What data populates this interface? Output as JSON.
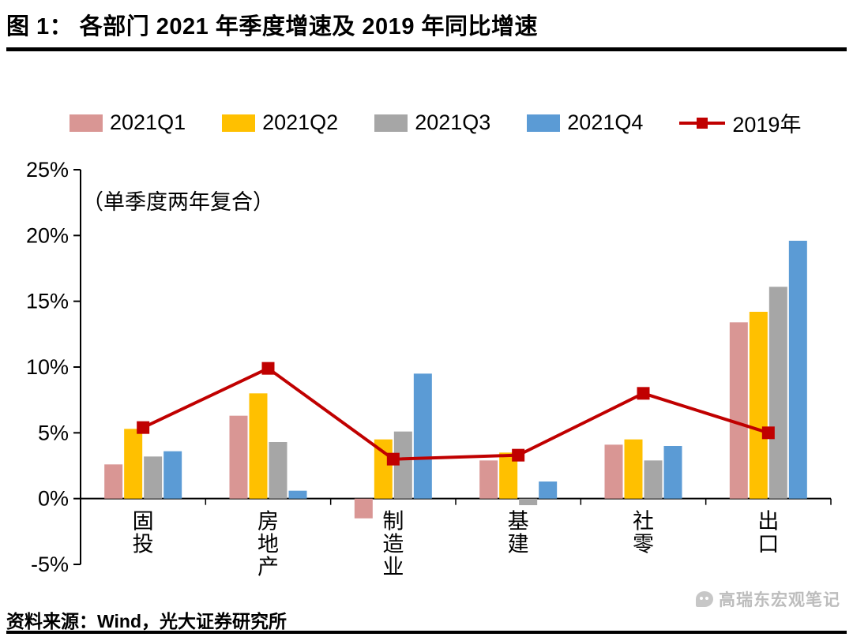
{
  "title": "图 1：  各部门 2021 年季度增速及 2019 年同比增速",
  "annotation": "（单季度两年复合）",
  "source": "资料来源：Wind，光大证券研究所",
  "watermark": "高瑞东宏观笔记",
  "colors": {
    "q1": "#D99694",
    "q2": "#FFC000",
    "q3": "#A6A6A6",
    "q4": "#5B9BD5",
    "line2019": "#C00000",
    "axis": "#000000"
  },
  "chart_data": {
    "type": "bar",
    "title": "各部门 2021 年季度增速及 2019 年同比增速",
    "xlabel": "",
    "ylabel": "",
    "ylim": [
      -5,
      25
    ],
    "ytick_step": 5,
    "ytick_labels": [
      "-5%",
      "0%",
      "5%",
      "10%",
      "15%",
      "20%",
      "25%"
    ],
    "grid": false,
    "legend_position": "top",
    "categories": [
      "固投",
      "房地产",
      "制造业",
      "基建",
      "社零",
      "出口"
    ],
    "series": [
      {
        "name": "2021Q1",
        "kind": "bar",
        "color": "#D99694",
        "values": [
          2.6,
          6.3,
          -1.5,
          2.9,
          4.1,
          13.4
        ]
      },
      {
        "name": "2021Q2",
        "kind": "bar",
        "color": "#FFC000",
        "values": [
          5.3,
          8.0,
          4.5,
          3.5,
          4.5,
          14.2
        ]
      },
      {
        "name": "2021Q3",
        "kind": "bar",
        "color": "#A6A6A6",
        "values": [
          3.2,
          4.3,
          5.1,
          -0.5,
          2.9,
          16.1
        ]
      },
      {
        "name": "2021Q4",
        "kind": "bar",
        "color": "#5B9BD5",
        "values": [
          3.6,
          0.6,
          9.5,
          1.3,
          4.0,
          19.6
        ]
      },
      {
        "name": "2019年",
        "kind": "line",
        "color": "#C00000",
        "values": [
          5.4,
          9.9,
          3.0,
          3.3,
          8.0,
          5.0
        ]
      }
    ]
  }
}
